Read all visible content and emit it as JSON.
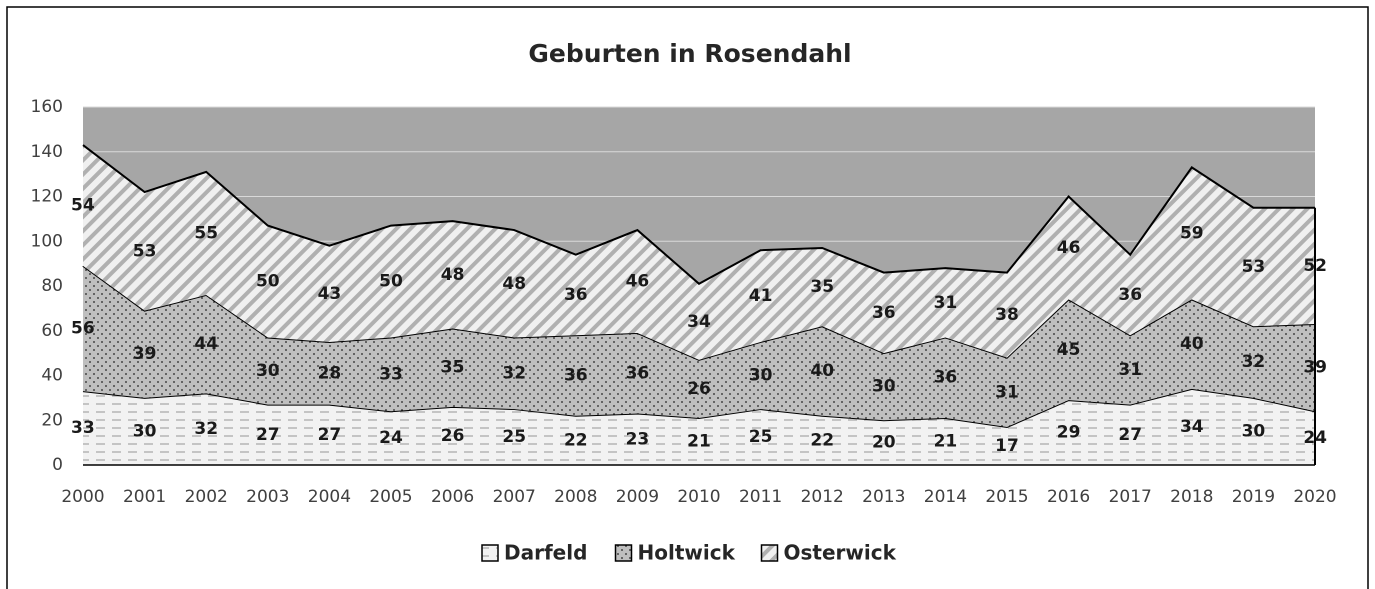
{
  "chart_data": {
    "type": "stacked_area",
    "title": "Geburten in Rosendahl",
    "categories": [
      "2000",
      "2001",
      "2002",
      "2003",
      "2004",
      "2005",
      "2006",
      "2007",
      "2008",
      "2009",
      "2010",
      "2011",
      "2012",
      "2013",
      "2014",
      "2015",
      "2016",
      "2017",
      "2018",
      "2019",
      "2020"
    ],
    "series": [
      {
        "name": "Darfeld",
        "color": "#f2f2f2",
        "pattern": "dashes",
        "values": [
          33,
          30,
          32,
          27,
          27,
          24,
          26,
          25,
          22,
          23,
          21,
          25,
          22,
          20,
          21,
          17,
          29,
          27,
          34,
          30,
          24
        ]
      },
      {
        "name": "Holtwick",
        "color": "#bfbfbf",
        "pattern": "dots",
        "values": [
          56,
          39,
          44,
          30,
          28,
          33,
          35,
          32,
          36,
          36,
          26,
          30,
          40,
          30,
          36,
          31,
          45,
          31,
          40,
          32,
          39
        ]
      },
      {
        "name": "Osterwick",
        "color": "#e8e8e8",
        "pattern": "stripes",
        "values": [
          54,
          53,
          55,
          50,
          43,
          50,
          48,
          48,
          36,
          46,
          34,
          41,
          35,
          36,
          31,
          38,
          46,
          36,
          59,
          53,
          52
        ]
      }
    ],
    "plot_background": "#a6a6a6",
    "ylim": [
      0,
      160
    ],
    "yticks": [
      0,
      20,
      40,
      60,
      80,
      100,
      120,
      140,
      160
    ],
    "grid": true,
    "legend": "bottom"
  }
}
